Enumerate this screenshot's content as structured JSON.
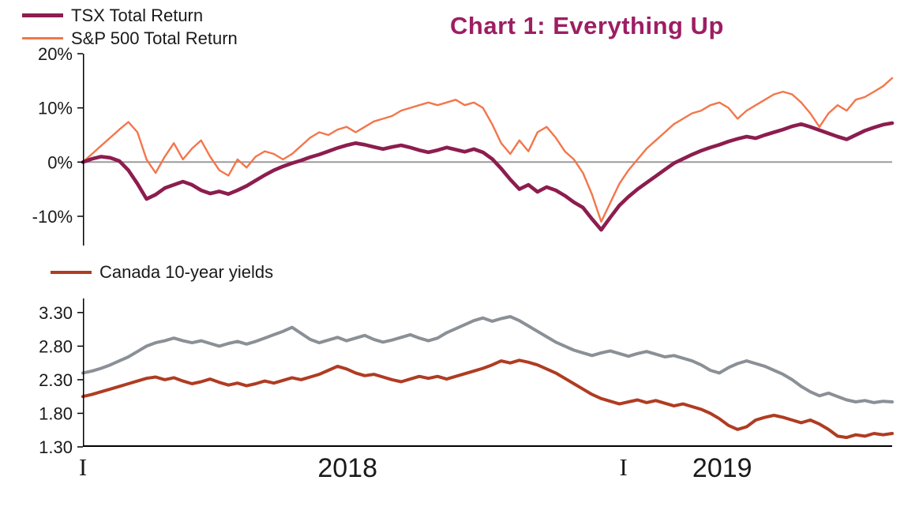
{
  "title": "Chart 1: Everything Up",
  "title_color": "#9C1E63",
  "legend_top": [
    {
      "label": "TSX Total Return",
      "color": "#8C1D4F",
      "thickness": 5
    },
    {
      "label": "S&P 500 Total Return",
      "color": "#F3764B",
      "thickness": 3
    }
  ],
  "legend_bottom": [
    {
      "label": "Canada 10-year yields",
      "color": "#AF3C22",
      "thickness": 4
    }
  ],
  "xaxis": {
    "ticks": [
      {
        "label": "I",
        "pos": 0.0
      },
      {
        "label": "2018",
        "pos": 0.327
      },
      {
        "label": "I",
        "pos": 0.668
      },
      {
        "label": "2019",
        "pos": 0.79
      }
    ]
  },
  "chart_data": [
    {
      "type": "line",
      "panel": "total-returns",
      "ylim": [
        -15.4,
        20
      ],
      "yticks": [
        {
          "v": 20,
          "label": "20%"
        },
        {
          "v": 10,
          "label": "10%"
        },
        {
          "v": 0,
          "label": "0%"
        },
        {
          "v": -10,
          "label": "-10%"
        }
      ],
      "zero_line": 0,
      "grid": false,
      "legend_position": "top-left",
      "series": [
        {
          "name": "TSX Total Return",
          "color": "#8C1D4F",
          "width": 4.6,
          "values": [
            0.0,
            0.6,
            1.0,
            0.8,
            0.2,
            -1.5,
            -4.0,
            -6.8,
            -6.0,
            -4.8,
            -4.2,
            -3.6,
            -4.2,
            -5.2,
            -5.8,
            -5.4,
            -5.9,
            -5.2,
            -4.4,
            -3.4,
            -2.4,
            -1.5,
            -0.8,
            -0.2,
            0.3,
            0.9,
            1.4,
            2.0,
            2.6,
            3.1,
            3.5,
            3.2,
            2.8,
            2.4,
            2.8,
            3.1,
            2.7,
            2.2,
            1.8,
            2.2,
            2.7,
            2.3,
            1.9,
            2.4,
            1.8,
            0.6,
            -1.2,
            -3.2,
            -5.0,
            -4.2,
            -5.5,
            -4.6,
            -5.2,
            -6.2,
            -7.4,
            -8.4,
            -10.5,
            -12.5,
            -10.2,
            -8.0,
            -6.4,
            -5.0,
            -3.8,
            -2.6,
            -1.4,
            -0.2,
            0.6,
            1.4,
            2.1,
            2.7,
            3.2,
            3.8,
            4.3,
            4.7,
            4.4,
            5.0,
            5.5,
            6.0,
            6.6,
            7.0,
            6.5,
            5.9,
            5.3,
            4.7,
            4.2,
            5.0,
            5.8,
            6.4,
            6.9,
            7.2
          ]
        },
        {
          "name": "S&P 500 Total Return",
          "color": "#F3764B",
          "width": 2.4,
          "values": [
            0.0,
            1.5,
            3.0,
            4.5,
            6.0,
            7.4,
            5.5,
            0.5,
            -2.0,
            1.0,
            3.5,
            0.5,
            2.5,
            4.0,
            1.0,
            -1.5,
            -2.5,
            0.5,
            -1.0,
            1.0,
            2.0,
            1.5,
            0.5,
            1.5,
            3.0,
            4.5,
            5.5,
            5.0,
            6.0,
            6.5,
            5.5,
            6.5,
            7.5,
            8.0,
            8.5,
            9.5,
            10.0,
            10.5,
            11.0,
            10.5,
            11.0,
            11.5,
            10.5,
            11.0,
            10.0,
            7.0,
            3.5,
            1.5,
            4.0,
            2.0,
            5.5,
            6.5,
            4.5,
            2.0,
            0.5,
            -2.0,
            -6.0,
            -11.0,
            -7.5,
            -4.0,
            -1.5,
            0.5,
            2.5,
            4.0,
            5.5,
            7.0,
            8.0,
            9.0,
            9.5,
            10.5,
            11.0,
            10.0,
            8.0,
            9.5,
            10.5,
            11.5,
            12.5,
            13.0,
            12.5,
            11.0,
            9.0,
            6.5,
            9.0,
            10.5,
            9.5,
            11.5,
            12.0,
            13.0,
            14.0,
            15.5
          ]
        }
      ]
    },
    {
      "type": "line",
      "panel": "10-year-yields",
      "ylim": [
        1.3,
        3.51
      ],
      "yticks": [
        {
          "v": 3.3,
          "label": "3.30"
        },
        {
          "v": 2.8,
          "label": "2.80"
        },
        {
          "v": 2.3,
          "label": "2.30"
        },
        {
          "v": 1.8,
          "label": "1.80"
        },
        {
          "v": 1.3,
          "label": "1.30"
        }
      ],
      "grid": false,
      "legend_position": "above-left",
      "series": [
        {
          "name": "Canada 10-year yields",
          "color": "#AF3C22",
          "width": 4,
          "values": [
            2.05,
            2.08,
            2.12,
            2.16,
            2.2,
            2.24,
            2.28,
            2.32,
            2.34,
            2.3,
            2.33,
            2.28,
            2.24,
            2.27,
            2.31,
            2.26,
            2.22,
            2.25,
            2.21,
            2.24,
            2.28,
            2.25,
            2.29,
            2.33,
            2.3,
            2.34,
            2.38,
            2.44,
            2.5,
            2.46,
            2.4,
            2.36,
            2.38,
            2.34,
            2.3,
            2.27,
            2.31,
            2.35,
            2.32,
            2.35,
            2.31,
            2.35,
            2.39,
            2.43,
            2.47,
            2.52,
            2.58,
            2.55,
            2.59,
            2.56,
            2.52,
            2.46,
            2.4,
            2.32,
            2.24,
            2.16,
            2.08,
            2.02,
            1.98,
            1.94,
            1.97,
            2.0,
            1.96,
            1.99,
            1.95,
            1.91,
            1.94,
            1.9,
            1.86,
            1.8,
            1.72,
            1.62,
            1.56,
            1.6,
            1.7,
            1.74,
            1.77,
            1.74,
            1.7,
            1.66,
            1.7,
            1.64,
            1.56,
            1.46,
            1.44,
            1.48,
            1.46,
            1.5,
            1.48,
            1.5
          ]
        },
        {
          "name": "",
          "color": "#8A9096",
          "width": 4,
          "values": [
            2.4,
            2.43,
            2.47,
            2.52,
            2.58,
            2.64,
            2.72,
            2.8,
            2.85,
            2.88,
            2.92,
            2.88,
            2.85,
            2.88,
            2.84,
            2.8,
            2.84,
            2.87,
            2.83,
            2.87,
            2.92,
            2.97,
            3.02,
            3.08,
            2.99,
            2.9,
            2.85,
            2.89,
            2.93,
            2.88,
            2.92,
            2.96,
            2.9,
            2.86,
            2.89,
            2.93,
            2.97,
            2.92,
            2.88,
            2.92,
            3.0,
            3.06,
            3.12,
            3.18,
            3.22,
            3.17,
            3.21,
            3.24,
            3.18,
            3.1,
            3.02,
            2.94,
            2.86,
            2.8,
            2.74,
            2.7,
            2.66,
            2.7,
            2.73,
            2.69,
            2.65,
            2.69,
            2.72,
            2.68,
            2.64,
            2.66,
            2.62,
            2.58,
            2.52,
            2.44,
            2.4,
            2.48,
            2.54,
            2.58,
            2.54,
            2.5,
            2.44,
            2.38,
            2.3,
            2.2,
            2.12,
            2.06,
            2.1,
            2.05,
            2.0,
            1.97,
            1.99,
            1.96,
            1.98,
            1.97
          ]
        }
      ]
    }
  ]
}
